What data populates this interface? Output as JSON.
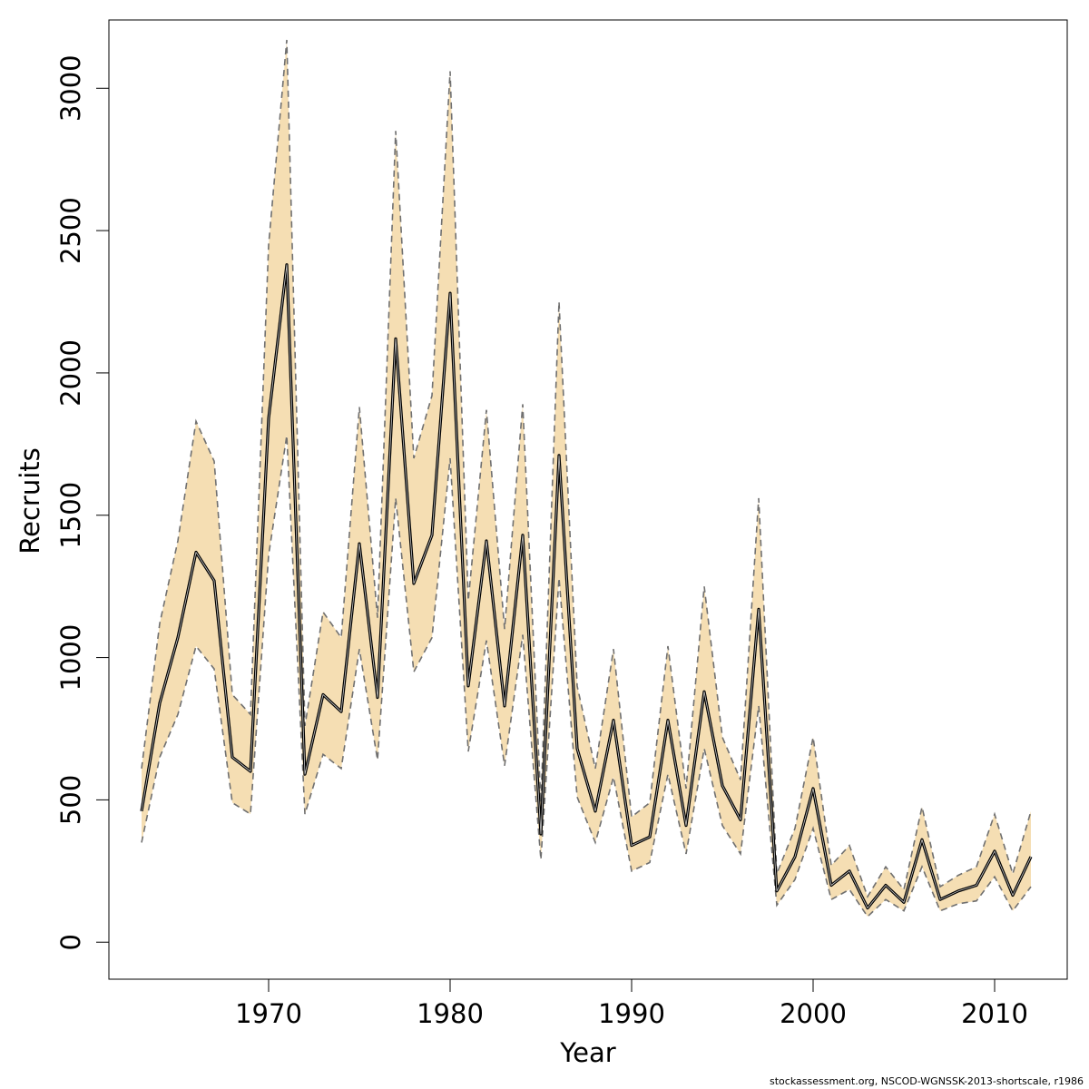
{
  "chart_data": {
    "type": "line",
    "title": "",
    "xlabel": "Year",
    "ylabel": "Recruits",
    "xlim": [
      1961.2,
      2014.0
    ],
    "ylim": [
      -130,
      3240
    ],
    "x_ticks": [
      1970,
      1980,
      1990,
      2000,
      2010
    ],
    "y_ticks": [
      0,
      500,
      1000,
      1500,
      2000,
      2500,
      3000
    ],
    "grid": false,
    "legend": "none",
    "colors": {
      "band_fill": "#f5deb3",
      "estimate_line": "#000000",
      "bound_lines": "#707070"
    },
    "years": [
      1963,
      1964,
      1965,
      1966,
      1967,
      1968,
      1969,
      1970,
      1971,
      1972,
      1973,
      1974,
      1975,
      1976,
      1977,
      1978,
      1979,
      1980,
      1981,
      1982,
      1983,
      1984,
      1985,
      1986,
      1987,
      1988,
      1989,
      1990,
      1991,
      1992,
      1993,
      1994,
      1995,
      1996,
      1997,
      1998,
      1999,
      2000,
      2001,
      2002,
      2003,
      2004,
      2005,
      2006,
      2007,
      2008,
      2009,
      2010,
      2011,
      2012
    ],
    "series": [
      {
        "values": [
          460,
          840,
          1070,
          1370,
          1270,
          650,
          600,
          1840,
          2380,
          590,
          870,
          810,
          1400,
          860,
          2120,
          1260,
          1430,
          2280,
          900,
          1410,
          830,
          1430,
          380,
          1710,
          680,
          460,
          780,
          340,
          370,
          780,
          410,
          880,
          550,
          430,
          1170,
          180,
          300,
          540,
          200,
          250,
          120,
          200,
          140,
          360,
          150,
          180,
          200,
          320,
          165,
          300
        ]
      },
      {
        "values": [
          350,
          650,
          800,
          1040,
          960,
          490,
          450,
          1360,
          1780,
          450,
          660,
          610,
          1030,
          640,
          1560,
          950,
          1070,
          1700,
          670,
          1060,
          620,
          1080,
          290,
          1280,
          510,
          350,
          580,
          250,
          280,
          590,
          310,
          680,
          410,
          310,
          830,
          130,
          220,
          400,
          150,
          185,
          90,
          150,
          110,
          265,
          110,
          135,
          145,
          230,
          110,
          195
        ]
      },
      {
        "values": [
          610,
          1120,
          1410,
          1830,
          1690,
          870,
          800,
          2450,
          3170,
          760,
          1160,
          1070,
          1880,
          1140,
          2850,
          1700,
          1920,
          3060,
          1200,
          1870,
          1100,
          1890,
          490,
          2250,
          900,
          610,
          1030,
          440,
          490,
          1040,
          540,
          1250,
          720,
          570,
          1560,
          240,
          400,
          720,
          270,
          340,
          160,
          265,
          185,
          475,
          195,
          235,
          265,
          450,
          240,
          460
        ]
      }
    ]
  },
  "footer": {
    "note": "stockassessment.org, NSCOD-WGNSSK-2013-shortscale, r1986"
  }
}
